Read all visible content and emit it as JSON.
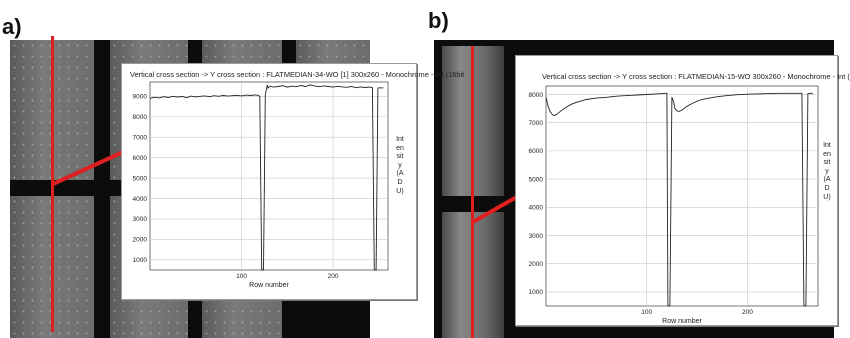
{
  "panels": [
    {
      "label": "a)",
      "chart_data": {
        "type": "line",
        "title": "Vertical cross section -> Y cross section : FLATMEDIAN-34-WO [1]  300x260 - Monochrome - Int (16bit",
        "xlabel": "",
        "ylabel": "Intensity (ADU)",
        "xlim": [
          0,
          260
        ],
        "ylim": [
          500,
          9700
        ],
        "xticks": [
          100,
          200
        ],
        "yticks": [
          1000,
          2000,
          3000,
          4000,
          5000,
          6000,
          7000,
          8000,
          9000
        ],
        "grid": true,
        "series": [
          {
            "x": [
              0,
              5,
              10,
              15,
              20,
              25,
              30,
              35,
              40,
              45,
              50,
              55,
              60,
              65,
              70,
              75,
              80,
              85,
              90,
              95,
              100,
              105,
              110,
              115,
              118,
              120,
              122,
              124,
              126,
              127,
              128,
              129,
              131,
              135,
              140,
              145,
              150,
              155,
              160,
              165,
              170,
              175,
              180,
              185,
              190,
              195,
              200,
              205,
              210,
              215,
              220,
              225,
              230,
              235,
              240,
              243,
              245,
              247,
              249,
              251,
              253,
              255
            ],
            "y": [
              8900,
              8950,
              8920,
              8980,
              8940,
              9000,
              8960,
              8990,
              8930,
              9010,
              8970,
              9000,
              9020,
              8980,
              9030,
              9000,
              9040,
              9010,
              9030,
              9050,
              9020,
              9060,
              9040,
              9070,
              9050,
              9000,
              300,
              300,
              9100,
              9300,
              9550,
              9400,
              9500,
              9450,
              9480,
              9520,
              9450,
              9500,
              9470,
              9530,
              9480,
              9560,
              9500,
              9470,
              9510,
              9480,
              9450,
              9490,
              9460,
              9440,
              9480,
              9420,
              9460,
              9430,
              9450,
              9420,
              300,
              300,
              9400,
              9420,
              9400,
              9420
            ]
          }
        ]
      }
    },
    {
      "label": "b)",
      "chart_data": {
        "type": "line",
        "title": "Vertical cross section -> Y cross section : FLATMEDIAN-15-WO 300x260 - Monochrome - Int (",
        "xlabel": "Row number",
        "ylabel": "Intensity (ADU)",
        "xlim": [
          0,
          270
        ],
        "ylim": [
          500,
          8300
        ],
        "xticks": [
          100,
          200
        ],
        "yticks": [
          1000,
          2000,
          3000,
          4000,
          5000,
          6000,
          7000,
          8000
        ],
        "grid": true,
        "series": [
          {
            "x": [
              0,
              2,
              4,
              6,
              8,
              10,
              15,
              20,
              25,
              30,
              40,
              50,
              60,
              70,
              80,
              90,
              100,
              110,
              115,
              118,
              120,
              121,
              123,
              125,
              127,
              128,
              130,
              132,
              135,
              140,
              145,
              150,
              155,
              160,
              170,
              180,
              190,
              200,
              210,
              220,
              230,
              240,
              250,
              254,
              256,
              258,
              260,
              262,
              265
            ],
            "y": [
              7900,
              7600,
              7400,
              7300,
              7250,
              7280,
              7420,
              7550,
              7650,
              7720,
              7820,
              7870,
              7900,
              7940,
              7960,
              7980,
              8000,
              8020,
              8030,
              8040,
              8040,
              200,
              200,
              7900,
              7700,
              7500,
              7420,
              7400,
              7450,
              7580,
              7680,
              7760,
              7820,
              7860,
              7920,
              7960,
              7990,
              8010,
              8020,
              8030,
              8040,
              8040,
              8040,
              8040,
              200,
              200,
              8030,
              8040,
              8040
            ]
          }
        ]
      }
    }
  ],
  "chart_a_xlabel": "Row number",
  "colors": {
    "red": "#e02020",
    "grid": "#c8c8c8",
    "line": "#222222"
  }
}
